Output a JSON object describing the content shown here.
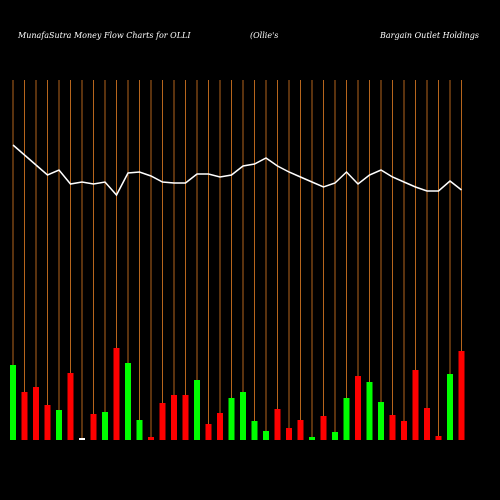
{
  "chart_data": {
    "type": "money-flow",
    "title": "MunafaSutra  Money Flow  Charts for OLLI",
    "subtitle": "(Ollie's",
    "company": "Bargain  Outlet Holdings",
    "categories": [
      null,
      null,
      null,
      null,
      null,
      null,
      null,
      null,
      null,
      null,
      null,
      null,
      null,
      null,
      null,
      null,
      null,
      null,
      null,
      null,
      null,
      null,
      null,
      null,
      null,
      null,
      null,
      null,
      null,
      null,
      null,
      null,
      null,
      null,
      null,
      null,
      null,
      null,
      null,
      null
    ],
    "ylim": [
      0,
      440
    ],
    "series": [
      {
        "type": "bar",
        "values": [
          75,
          48,
          53,
          35,
          30,
          67,
          2,
          26,
          28,
          92,
          77,
          20,
          3,
          37,
          45,
          45,
          60,
          16,
          27,
          42,
          48,
          19,
          9,
          31,
          12,
          20,
          3,
          24,
          8,
          42,
          64,
          58,
          38,
          25,
          19,
          70,
          32,
          4,
          66,
          89
        ],
        "colors": [
          "#00ff00",
          "#ff0000",
          "#ff0000",
          "#ff0000",
          "#00ff00",
          "#ff0000",
          "#ffffff",
          "#ff0000",
          "#00ff00",
          "#ff0000",
          "#00ff00",
          "#00ff00",
          "#ff0000",
          "#ff0000",
          "#ff0000",
          "#ff0000",
          "#00ff00",
          "#ff0000",
          "#ff0000",
          "#00ff00",
          "#00ff00",
          "#00ff00",
          "#00ff00",
          "#ff0000",
          "#ff0000",
          "#ff0000",
          "#00ff00",
          "#ff0000",
          "#00ff00",
          "#00ff00",
          "#ff0000",
          "#00ff00",
          "#00ff00",
          "#ff0000",
          "#ff0000",
          "#ff0000",
          "#ff0000",
          "#ff0000",
          "#00ff00",
          "#ff0000"
        ]
      },
      {
        "type": "line",
        "color": "#ffffff",
        "values": [
          295,
          285,
          275,
          265,
          270,
          256,
          258,
          256,
          258,
          245,
          267,
          268,
          264,
          258,
          257,
          257,
          266,
          266,
          263,
          265,
          274,
          276,
          282,
          274,
          268,
          263,
          258,
          253,
          257,
          268,
          256,
          265,
          270,
          263,
          258,
          253,
          249,
          249,
          259,
          250
        ]
      }
    ]
  }
}
